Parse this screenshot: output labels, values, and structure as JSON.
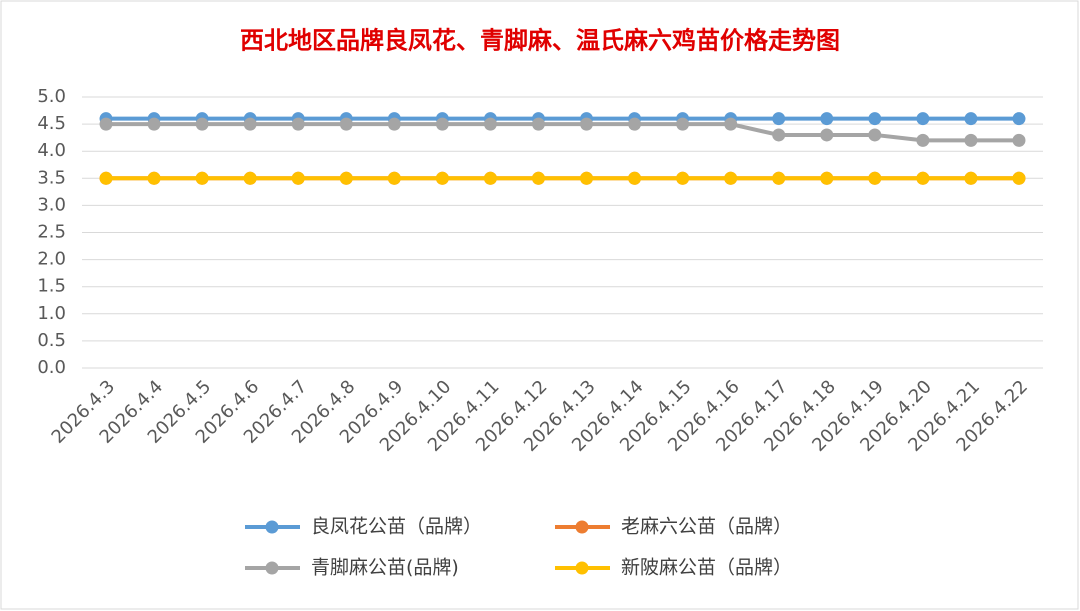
{
  "chart_data": {
    "type": "line",
    "title": "西北地区品牌良凤花、青脚麻、温氏麻六鸡苗价格走势图",
    "categories": [
      "2026.4.3",
      "2026.4.4",
      "2026.4.5",
      "2026.4.6",
      "2026.4.7",
      "2026.4.8",
      "2026.4.9",
      "2026.4.10",
      "2026.4.11",
      "2026.4.12",
      "2026.4.13",
      "2026.4.14",
      "2026.4.15",
      "2026.4.16",
      "2026.4.17",
      "2026.4.18",
      "2026.4.19",
      "2026.4.20",
      "2026.4.21",
      "2026.4.22"
    ],
    "series": [
      {
        "name": "良凤花公苗（品牌）",
        "color": "#5b9bd5",
        "values": [
          4.6,
          4.6,
          4.6,
          4.6,
          4.6,
          4.6,
          4.6,
          4.6,
          4.6,
          4.6,
          4.6,
          4.6,
          4.6,
          4.6,
          4.6,
          4.6,
          4.6,
          4.6,
          4.6,
          4.6
        ]
      },
      {
        "name": "老麻六公苗（品牌）",
        "color": "#ed7d31",
        "values": [
          3.5,
          3.5,
          3.5,
          3.5,
          3.5,
          3.5,
          3.5,
          3.5,
          3.5,
          3.5,
          3.5,
          3.5,
          3.5,
          3.5,
          3.5,
          3.5,
          3.5,
          3.5,
          3.5,
          3.5
        ]
      },
      {
        "name": "青脚麻公苗(品牌)",
        "color": "#a5a5a5",
        "values": [
          4.5,
          4.5,
          4.5,
          4.5,
          4.5,
          4.5,
          4.5,
          4.5,
          4.5,
          4.5,
          4.5,
          4.5,
          4.5,
          4.5,
          4.3,
          4.3,
          4.3,
          4.2,
          4.2,
          4.2
        ]
      },
      {
        "name": "新陂麻公苗（品牌）",
        "color": "#ffc000",
        "values": [
          3.5,
          3.5,
          3.5,
          3.5,
          3.5,
          3.5,
          3.5,
          3.5,
          3.5,
          3.5,
          3.5,
          3.5,
          3.5,
          3.5,
          3.5,
          3.5,
          3.5,
          3.5,
          3.5,
          3.5
        ]
      }
    ],
    "ylim": [
      0,
      5
    ],
    "yticks": [
      {
        "value": 0,
        "label": "0.0"
      },
      0.5,
      {
        "value": 1,
        "label": "1.0"
      },
      1.5,
      {
        "value": 2,
        "label": "2.0"
      },
      2.5,
      {
        "value": 3,
        "label": "3.0"
      },
      3.5,
      {
        "value": 4,
        "label": "4.0"
      },
      4.5,
      {
        "value": 5,
        "label": "5.0"
      }
    ],
    "grid": true,
    "legend": "bottom"
  }
}
